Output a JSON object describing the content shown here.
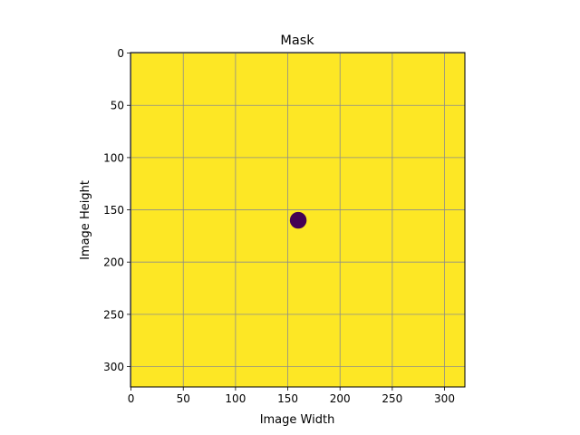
{
  "chart_data": {
    "type": "heatmap",
    "title": "Mask",
    "xlabel": "Image Width",
    "ylabel": "Image Height",
    "image_width": 320,
    "image_height": 320,
    "xlim": [
      -0.5,
      319.5
    ],
    "ylim": [
      319.5,
      -0.5
    ],
    "y_axis_inverted": true,
    "xticks": [
      0,
      50,
      100,
      150,
      200,
      250,
      300
    ],
    "yticks": [
      0,
      50,
      100,
      150,
      200,
      250,
      300
    ],
    "grid": true,
    "colormap": "viridis",
    "background_value": 1,
    "background_color": "#fde725",
    "masked_regions": [
      {
        "shape": "circle",
        "center_x": 160,
        "center_y": 160,
        "radius": 8,
        "value": 0,
        "color": "#440154"
      }
    ]
  }
}
